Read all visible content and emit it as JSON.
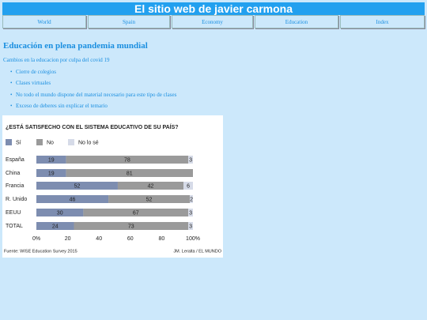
{
  "header": {
    "title": "El sitio web de javier carmona"
  },
  "nav": [
    "World",
    "Spain",
    "Economy",
    "Education",
    "Index"
  ],
  "article": {
    "heading": "Educación en plena pandemia mundial",
    "intro": "Cambios en la educacion por culpa del covid 19",
    "items": [
      "Cierre de colegios",
      "Clases virtuales",
      "No todo el mundo dispone del material necesario para este tipo de clases",
      "Exceso de deberes sin explicar el temario"
    ]
  },
  "chart_data": {
    "type": "stacked-bar-horizontal",
    "title": "¿ESTÁ SATISFECHO CON EL SISTEMA EDUCATIVO DE SU PAÍS?",
    "categories": [
      "España",
      "China",
      "Francia",
      "R. Unido",
      "EEUU",
      "TOTAL"
    ],
    "series": [
      {
        "name": "Sí",
        "color": "#7d8db0",
        "values": [
          19,
          19,
          52,
          46,
          30,
          24
        ]
      },
      {
        "name": "No",
        "color": "#9a9a9a",
        "values": [
          78,
          81,
          42,
          52,
          67,
          73
        ]
      },
      {
        "name": "No lo sé",
        "color": "#d6dbe8",
        "values": [
          3,
          null,
          6,
          2,
          3,
          3
        ]
      }
    ],
    "xlim": [
      0,
      100
    ],
    "xticks": [
      {
        "value": 0,
        "label": "0%"
      },
      20,
      40,
      60,
      80,
      {
        "value": 100,
        "label": "100%"
      }
    ],
    "source": "Fuente: WISE Education Survey 2015",
    "credit": "JM. Leralta / EL MUNDO"
  }
}
